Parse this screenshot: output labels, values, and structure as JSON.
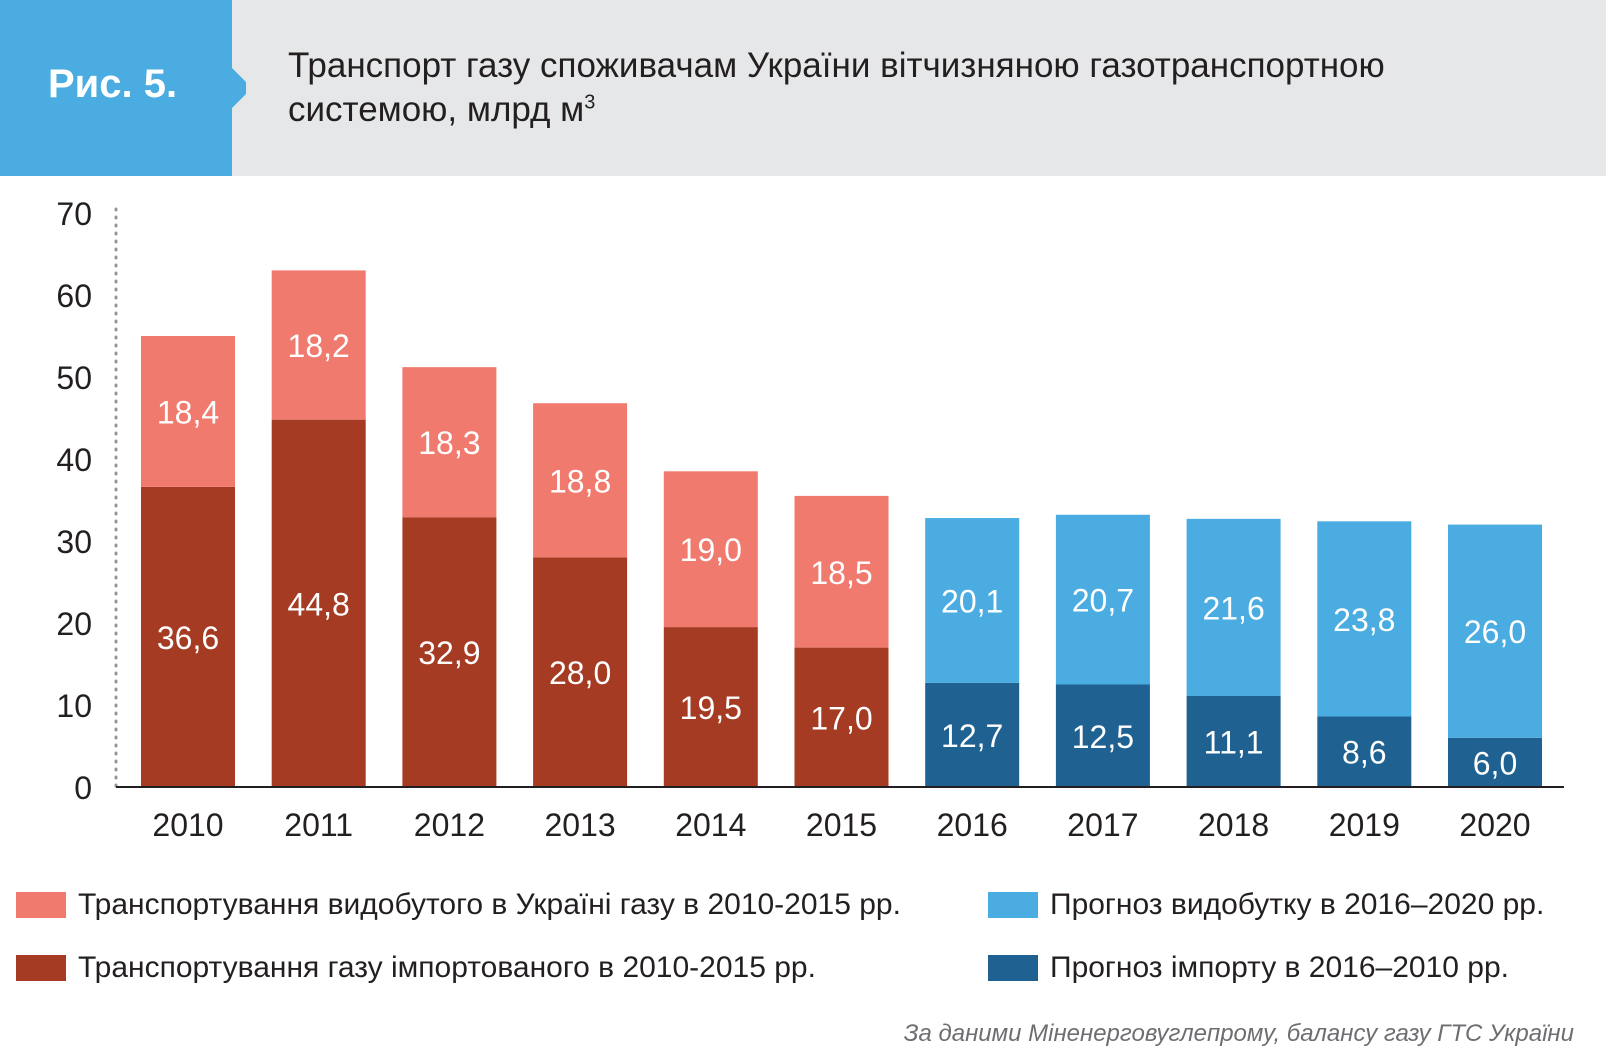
{
  "header": {
    "figure_label": "Рис. 5.",
    "title_main": "Транспорт газу споживачам України вітчизняною газотранспортною системою, млрд м",
    "title_sup": "3"
  },
  "colors": {
    "header_bg": "#e6e7e8",
    "fig_tag_bg": "#4aace0",
    "domestic_2010_2015": "#f07a6e",
    "import_2010_2015": "#a53b23",
    "forecast_domestic": "#4aace0",
    "forecast_import": "#1f6191"
  },
  "chart_data": {
    "type": "bar",
    "stacked": true,
    "categories": [
      "2010",
      "2011",
      "2012",
      "2013",
      "2014",
      "2015",
      "2016",
      "2017",
      "2018",
      "2019",
      "2020"
    ],
    "ylim": [
      0,
      70
    ],
    "yticks": [
      "0",
      "10",
      "20",
      "30",
      "40",
      "50",
      "60",
      "70"
    ],
    "grid": false,
    "series": [
      {
        "name": "Транспортування газу імпортованого в 2010-2015 рр.",
        "color": "#a53b23",
        "values": [
          36.6,
          44.8,
          32.9,
          28.0,
          19.5,
          17.0,
          null,
          null,
          null,
          null,
          null
        ],
        "labels": [
          "36,6",
          "44,8",
          "32,9",
          "28,0",
          "19,5",
          "17,0",
          "",
          "",
          "",
          "",
          ""
        ]
      },
      {
        "name": "Транспортування видобутого в Україні газу в 2010-2015 рр.",
        "color": "#f07a6e",
        "values": [
          18.4,
          18.2,
          18.3,
          18.8,
          19.0,
          18.5,
          null,
          null,
          null,
          null,
          null
        ],
        "labels": [
          "18,4",
          "18,2",
          "18,3",
          "18,8",
          "19,0",
          "18,5",
          "",
          "",
          "",
          "",
          ""
        ]
      },
      {
        "name": "Прогноз імпорту в 2016–2010 рр.",
        "color": "#1f6191",
        "values": [
          null,
          null,
          null,
          null,
          null,
          null,
          12.7,
          12.5,
          11.1,
          8.6,
          6.0
        ],
        "labels": [
          "",
          "",
          "",
          "",
          "",
          "",
          "12,7",
          "12,5",
          "11,1",
          "8,6",
          "6,0"
        ]
      },
      {
        "name": "Прогноз видобутку в 2016–2020 рр.",
        "color": "#4aace0",
        "values": [
          null,
          null,
          null,
          null,
          null,
          null,
          20.1,
          20.7,
          21.6,
          23.8,
          26.0
        ],
        "labels": [
          "",
          "",
          "",
          "",
          "",
          "",
          "20,1",
          "20,7",
          "21,6",
          "23,8",
          "26,0"
        ]
      }
    ]
  },
  "legend": {
    "items": [
      {
        "label": "Транспортування видобутого в Україні газу в 2010-2015 рр.",
        "color": "#f07a6e"
      },
      {
        "label": "Прогноз видобутку в 2016–2020 рр.",
        "color": "#4aace0"
      },
      {
        "label": "Транспортування газу імпортованого в 2010-2015 рр.",
        "color": "#a53b23"
      },
      {
        "label": "Прогноз імпорту в 2016–2010 рр.",
        "color": "#1f6191"
      }
    ]
  },
  "source": "За даними Міненерговуглепрому, балансу газу ГТС України"
}
